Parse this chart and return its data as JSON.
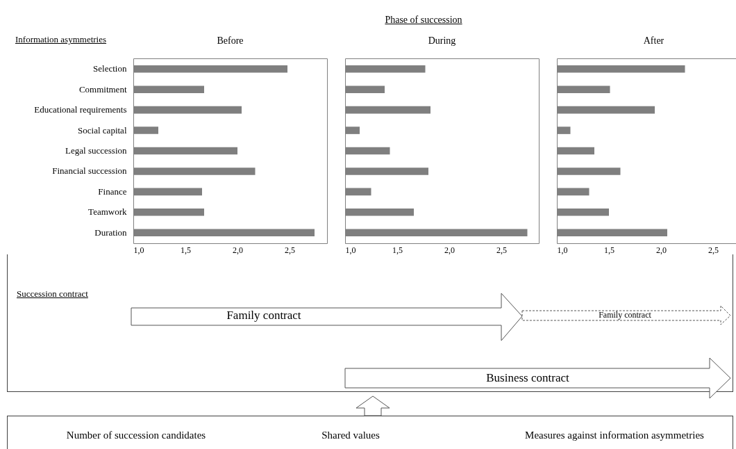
{
  "chart_data": [
    {
      "type": "bar",
      "orientation": "horizontal",
      "title": "Before",
      "ylabel": "Information asymmetries",
      "categories": [
        "Selection",
        "Commitment",
        "Educational requirements",
        "Social capital",
        "Legal succession",
        "Financial succession",
        "Finance",
        "Teamwork",
        "Duration"
      ],
      "values": [
        2.48,
        1.68,
        2.04,
        1.24,
        2.0,
        2.17,
        1.66,
        1.68,
        2.74
      ],
      "color": "#7f7f7f",
      "xlim": [
        1,
        2.86
      ],
      "xticks": [
        {
          "value": 1,
          "label": "1,0"
        },
        {
          "value": 1.5,
          "label": "1,5"
        },
        {
          "value": 2,
          "label": "2,0"
        },
        {
          "value": 2.5,
          "label": "2,5"
        }
      ],
      "annotations": [
        "Succession contract",
        "Family contract",
        "Family contract",
        "Business contract",
        "Number of succession candidates",
        "Shared values",
        "Measures against information asymmetries"
      ]
    },
    {
      "type": "bar",
      "orientation": "horizontal",
      "title": "During",
      "categories": [
        null,
        null,
        null,
        null,
        null,
        null,
        null,
        null,
        null
      ],
      "values": [
        1.77,
        1.38,
        1.82,
        1.14,
        1.43,
        1.8,
        1.25,
        1.66,
        2.75
      ],
      "color": "#7f7f7f",
      "xlim": [
        1,
        2.86
      ],
      "xticks": [
        {
          "value": 1,
          "label": "1,0"
        },
        {
          "value": 1.5,
          "label": "1,5"
        },
        {
          "value": 2,
          "label": "2,0"
        },
        {
          "value": 2.5,
          "label": "2,5"
        }
      ],
      "annotations": [
        "Phase of succession"
      ]
    },
    {
      "type": "bar",
      "orientation": "horizontal",
      "title": "After",
      "categories": [
        null,
        null,
        null,
        null,
        null,
        null,
        null,
        null,
        null
      ],
      "values": [
        2.23,
        1.51,
        1.94,
        1.13,
        1.36,
        1.61,
        1.31,
        1.5,
        2.06
      ],
      "color": "#7f7f7f",
      "xlim": [
        1,
        2.86
      ],
      "xticks": [
        {
          "value": 1,
          "label": "1,0"
        },
        {
          "value": 1.5,
          "label": "1,5"
        },
        {
          "value": 2,
          "label": "2,0"
        },
        {
          "value": 2.5,
          "label": "2,5"
        }
      ]
    }
  ]
}
